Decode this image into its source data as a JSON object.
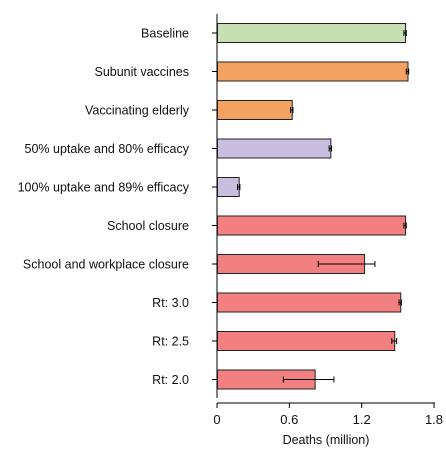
{
  "chart_data": {
    "type": "bar",
    "orientation": "horizontal",
    "xlabel": "Deaths (million)",
    "xlim": [
      0,
      1.8
    ],
    "xticks": [
      {
        "value": 0,
        "label": "0"
      },
      {
        "value": 0.6,
        "label": "0.6"
      },
      {
        "value": 1.2,
        "label": "1.2"
      },
      {
        "value": 1.8,
        "label": "1.8"
      }
    ],
    "bars": [
      {
        "label": "Baseline",
        "value": 1.56,
        "err_low": 1.55,
        "err_high": 1.57,
        "color": "#c6e0b4"
      },
      {
        "label": "Subunit vaccines",
        "value": 1.58,
        "err_low": 1.57,
        "err_high": 1.59,
        "color": "#f4a261"
      },
      {
        "label": "Vaccinating elderly",
        "value": 0.62,
        "err_low": 0.61,
        "err_high": 0.63,
        "color": "#f4a261"
      },
      {
        "label": "50% uptake and 80% efficacy",
        "value": 0.94,
        "err_low": 0.93,
        "err_high": 0.95,
        "color": "#c9bde0"
      },
      {
        "label": "100% uptake and 89% efficacy",
        "value": 0.18,
        "err_low": 0.17,
        "err_high": 0.19,
        "color": "#c9bde0"
      },
      {
        "label": "School closure",
        "value": 1.56,
        "err_low": 1.55,
        "err_high": 1.57,
        "color": "#f28080"
      },
      {
        "label": "School and workplace closure",
        "value": 1.22,
        "err_low": 0.84,
        "err_high": 1.31,
        "color": "#f28080"
      },
      {
        "label": "Rt: 3.0",
        "value": 1.52,
        "err_low": 1.51,
        "err_high": 1.53,
        "color": "#f28080"
      },
      {
        "label": "Rt: 2.5",
        "value": 1.47,
        "err_low": 1.45,
        "err_high": 1.49,
        "color": "#f28080"
      },
      {
        "label": "Rt: 2.0",
        "value": 0.81,
        "err_low": 0.55,
        "err_high": 0.97,
        "color": "#f28080"
      }
    ],
    "grid": false,
    "legend": "none"
  }
}
